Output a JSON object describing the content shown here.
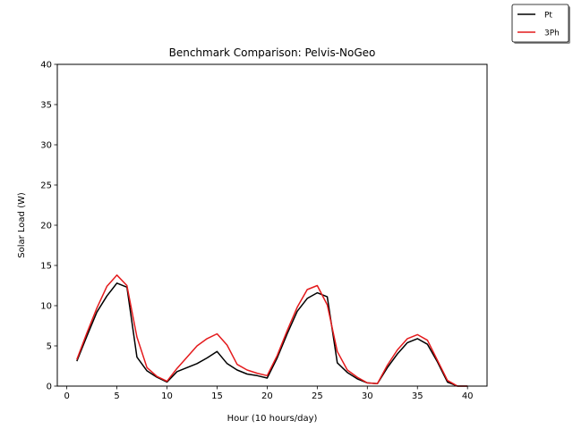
{
  "chart_data": {
    "type": "line",
    "title": "Benchmark Comparison: Pelvis-NoGeo",
    "xlabel": "Hour (10 hours/day)",
    "ylabel": "Solar Load (W)",
    "xlim": [
      -0.95,
      41.95
    ],
    "ylim": [
      0,
      40
    ],
    "xticks": [
      0,
      5,
      10,
      15,
      20,
      25,
      30,
      35,
      40
    ],
    "yticks": [
      0,
      5,
      10,
      15,
      20,
      25,
      30,
      35,
      40
    ],
    "grid": false,
    "legend_position": "top-right",
    "x": [
      1,
      2,
      3,
      4,
      5,
      6,
      7,
      8,
      9,
      10,
      11,
      12,
      13,
      14,
      15,
      16,
      17,
      18,
      19,
      20,
      21,
      22,
      23,
      24,
      25,
      26,
      27,
      28,
      29,
      30,
      31,
      32,
      33,
      34,
      35,
      36,
      37,
      38,
      39,
      40
    ],
    "series": [
      {
        "name": "Pt",
        "color": "#000000",
        "values": [
          3.1,
          6.2,
          9.2,
          11.2,
          12.8,
          12.3,
          3.6,
          1.9,
          1.1,
          0.5,
          1.8,
          2.3,
          2.8,
          3.5,
          4.3,
          2.8,
          2.0,
          1.5,
          1.3,
          1.0,
          3.5,
          6.5,
          9.3,
          10.9,
          11.6,
          11.1,
          2.9,
          1.7,
          0.9,
          0.4,
          0.3,
          2.3,
          4.0,
          5.4,
          5.9,
          5.2,
          3.0,
          0.5,
          0.0,
          0.0
        ]
      },
      {
        "name": "3Ph",
        "color": "#e41a1c",
        "values": [
          3.3,
          6.6,
          9.7,
          12.4,
          13.8,
          12.5,
          6.1,
          2.3,
          1.2,
          0.6,
          2.2,
          3.6,
          5.0,
          5.9,
          6.5,
          5.1,
          2.7,
          2.0,
          1.6,
          1.3,
          3.8,
          6.9,
          9.8,
          12.0,
          12.5,
          10.1,
          4.3,
          2.0,
          1.1,
          0.4,
          0.3,
          2.6,
          4.5,
          5.9,
          6.4,
          5.7,
          3.2,
          0.7,
          0.0,
          0.0
        ]
      }
    ]
  }
}
